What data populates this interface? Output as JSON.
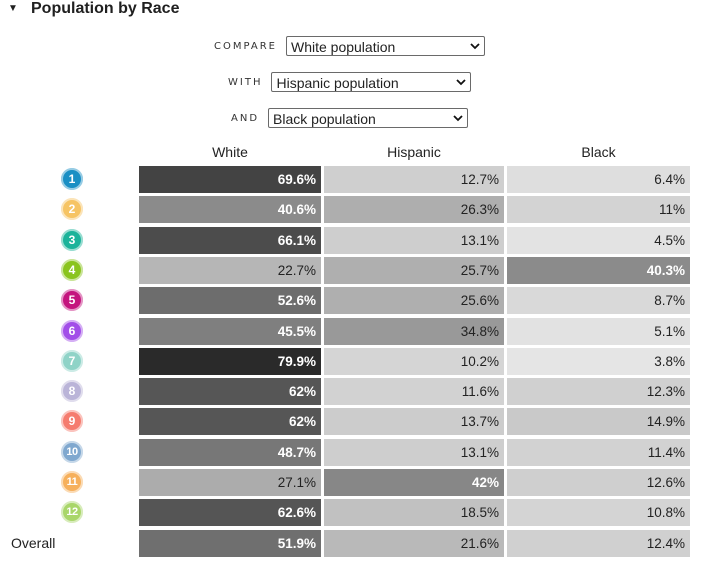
{
  "section": {
    "title": "Population by Race",
    "collapse_icon": "caret-down-icon"
  },
  "filters": {
    "compare_label": "COMPARE",
    "compare_value": "White population",
    "with_label": "WITH",
    "with_value": "Hispanic population",
    "and_label": "AND",
    "and_value": "Black population",
    "dropdown_icon": "chevron-down-icon"
  },
  "table": {
    "columns": [
      "White",
      "Hispanic",
      "Black"
    ],
    "rows": [
      {
        "id": "1",
        "color": "#1a8fc4",
        "values": [
          "69.6%",
          "12.7%",
          "6.4%"
        ],
        "shares": [
          0.696,
          0.127,
          0.064
        ]
      },
      {
        "id": "2",
        "color": "#f6c464",
        "values": [
          "40.6%",
          "26.3%",
          "11%"
        ],
        "shares": [
          0.406,
          0.263,
          0.11
        ]
      },
      {
        "id": "3",
        "color": "#1bb39a",
        "values": [
          "66.1%",
          "13.1%",
          "4.5%"
        ],
        "shares": [
          0.661,
          0.131,
          0.045
        ]
      },
      {
        "id": "4",
        "color": "#8ac41e",
        "values": [
          "22.7%",
          "25.7%",
          "40.3%"
        ],
        "shares": [
          0.227,
          0.257,
          0.403
        ]
      },
      {
        "id": "5",
        "color": "#c4157e",
        "values": [
          "52.6%",
          "25.6%",
          "8.7%"
        ],
        "shares": [
          0.526,
          0.256,
          0.087
        ]
      },
      {
        "id": "6",
        "color": "#a24ee8",
        "values": [
          "45.5%",
          "34.8%",
          "5.1%"
        ],
        "shares": [
          0.455,
          0.348,
          0.051
        ]
      },
      {
        "id": "7",
        "color": "#8fd3c7",
        "values": [
          "79.9%",
          "10.2%",
          "3.8%"
        ],
        "shares": [
          0.799,
          0.102,
          0.038
        ]
      },
      {
        "id": "8",
        "color": "#bab4d8",
        "values": [
          "62%",
          "11.6%",
          "12.3%"
        ],
        "shares": [
          0.62,
          0.116,
          0.123
        ]
      },
      {
        "id": "9",
        "color": "#f57c6f",
        "values": [
          "62%",
          "13.7%",
          "14.9%"
        ],
        "shares": [
          0.62,
          0.137,
          0.149
        ]
      },
      {
        "id": "10",
        "color": "#80a8cf",
        "values": [
          "48.7%",
          "13.1%",
          "11.4%"
        ],
        "shares": [
          0.487,
          0.131,
          0.114
        ]
      },
      {
        "id": "11",
        "color": "#f6b05c",
        "values": [
          "27.1%",
          "42%",
          "12.6%"
        ],
        "shares": [
          0.271,
          0.42,
          0.126
        ]
      },
      {
        "id": "12",
        "color": "#a9d66a",
        "values": [
          "62.6%",
          "18.5%",
          "10.8%"
        ],
        "shares": [
          0.626,
          0.185,
          0.108
        ]
      }
    ],
    "overall": {
      "label": "Overall",
      "values": [
        "51.9%",
        "21.6%",
        "12.4%"
      ],
      "shares": [
        0.519,
        0.216,
        0.124
      ]
    }
  }
}
